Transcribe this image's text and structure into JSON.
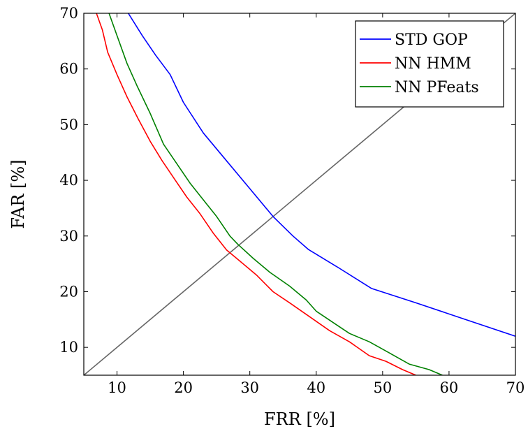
{
  "chart_data": {
    "type": "line",
    "title": "",
    "xlabel": "FRR [%]",
    "ylabel": "FAR [%]",
    "xlim": [
      5,
      70
    ],
    "ylim": [
      5,
      70
    ],
    "xticks": [
      10,
      20,
      30,
      40,
      50,
      60,
      70
    ],
    "yticks": [
      10,
      20,
      30,
      40,
      50,
      60,
      70
    ],
    "grid": false,
    "legend_position": "top-right",
    "diagonal": {
      "from": [
        5,
        5
      ],
      "to": [
        70,
        70
      ],
      "color": "#666666"
    },
    "series": [
      {
        "name": "STD GOP",
        "color": "#0000ff",
        "x": [
          11.7,
          13.8,
          15.8,
          18.0,
          20.0,
          23.0,
          26.5,
          30.0,
          33.5,
          36.5,
          38.8,
          43.5,
          48.3,
          55.0,
          62.0,
          70.0
        ],
        "y": [
          70.0,
          66.0,
          62.5,
          59.0,
          54.0,
          48.5,
          43.5,
          38.5,
          33.5,
          30.0,
          27.6,
          24.2,
          20.6,
          18.0,
          15.2,
          12.0
        ]
      },
      {
        "name": "NN HMM",
        "color": "#ff0000",
        "x": [
          6.9,
          7.8,
          8.6,
          10.0,
          11.5,
          13.2,
          15.0,
          16.8,
          18.5,
          20.5,
          22.5,
          24.5,
          26.5,
          28.5,
          31.0,
          33.5,
          36.0,
          39.0,
          42.0,
          45.0,
          48.0,
          50.5,
          53.0,
          55.0
        ],
        "y": [
          70.0,
          67.0,
          63.0,
          59.0,
          55.0,
          51.0,
          47.0,
          43.5,
          40.5,
          37.0,
          34.0,
          30.5,
          27.5,
          25.5,
          23.0,
          20.0,
          18.0,
          15.5,
          13.0,
          11.0,
          8.5,
          7.5,
          6.0,
          5.0
        ]
      },
      {
        "name": "NN PFeats",
        "color": "#008000",
        "x": [
          8.8,
          10.0,
          11.5,
          13.0,
          15.0,
          17.0,
          19.0,
          21.0,
          23.0,
          25.0,
          27.0,
          28.2,
          30.5,
          33.0,
          36.0,
          38.5,
          40.0,
          42.5,
          45.0,
          48.0,
          51.0,
          54.0,
          57.0,
          59.0
        ],
        "y": [
          70.0,
          66.0,
          61.0,
          57.0,
          52.0,
          46.5,
          43.0,
          39.5,
          36.5,
          33.5,
          30.0,
          28.5,
          26.0,
          23.5,
          21.0,
          18.5,
          16.5,
          14.5,
          12.5,
          11.0,
          9.0,
          7.0,
          6.0,
          5.0
        ]
      }
    ]
  }
}
